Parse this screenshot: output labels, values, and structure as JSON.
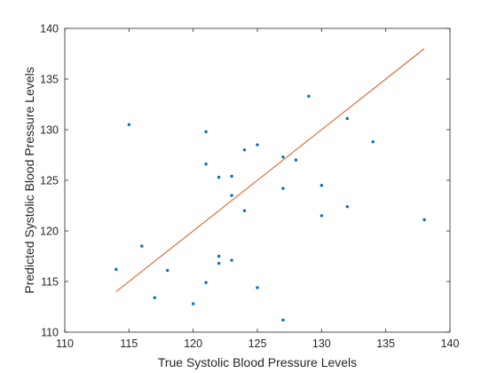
{
  "chart_data": {
    "type": "scatter",
    "title": "",
    "xlabel": "True Systolic Blood Pressure Levels",
    "ylabel": "Predicted Systolic Blood Pressure Levels",
    "xlim": [
      110,
      140
    ],
    "ylim": [
      110,
      140
    ],
    "xticks": [
      110,
      115,
      120,
      125,
      130,
      135,
      140
    ],
    "yticks": [
      110,
      115,
      120,
      125,
      130,
      135,
      140
    ],
    "grid": false,
    "legend": "none",
    "colors": {
      "points": "#0072BD",
      "line": "#D95319",
      "axes": "#262626"
    },
    "series": [
      {
        "type": "scatter",
        "x": [
          114,
          115,
          116,
          117,
          118,
          120,
          121,
          121,
          121,
          122,
          122,
          122,
          123,
          123,
          123,
          124,
          124,
          125,
          125,
          127,
          127,
          127,
          128,
          129,
          130,
          130,
          132,
          132,
          134,
          138
        ],
        "y": [
          116.2,
          130.5,
          118.5,
          113.4,
          116.1,
          112.8,
          129.8,
          126.6,
          114.9,
          125.3,
          117.5,
          116.8,
          125.4,
          123.5,
          117.1,
          128.0,
          122.0,
          128.5,
          114.4,
          127.3,
          124.2,
          111.2,
          127.0,
          133.3,
          124.5,
          121.5,
          131.1,
          122.4,
          128.8,
          121.1
        ]
      },
      {
        "type": "line",
        "x": [
          114,
          138
        ],
        "y": [
          114,
          138
        ]
      }
    ]
  }
}
